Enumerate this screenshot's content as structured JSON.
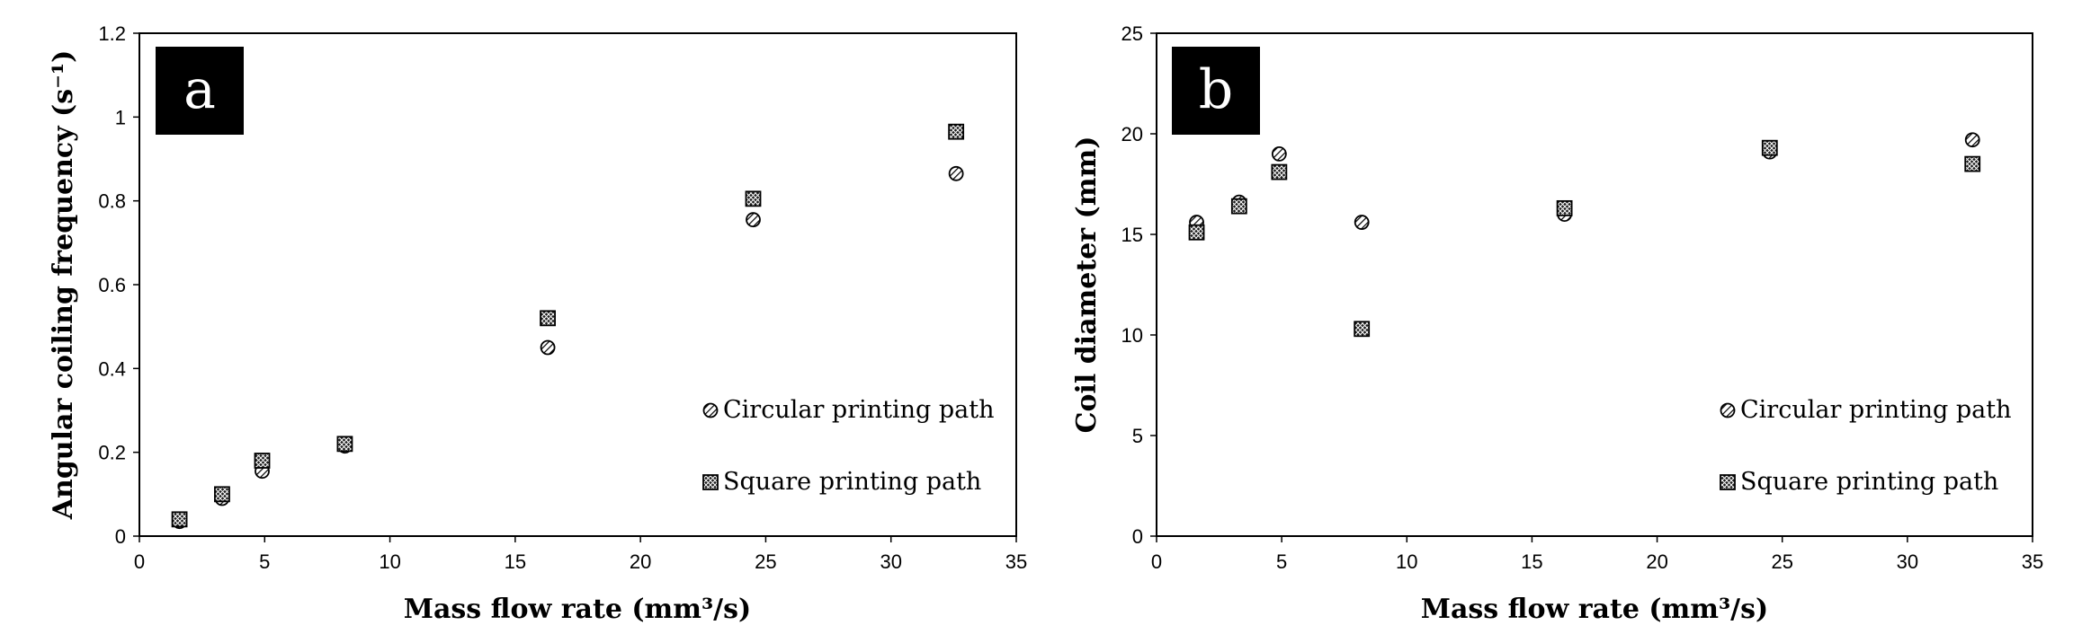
{
  "chart_data": [
    {
      "type": "scatter",
      "panel_label": "a",
      "xlabel": "Mass flow rate (mm³/s)",
      "ylabel": "Angular coiling frequency (s⁻¹)",
      "xlim": [
        0,
        35
      ],
      "ylim": [
        0,
        1.2
      ],
      "x_ticks": [
        "0",
        "5",
        "10",
        "15",
        "20",
        "25",
        "30",
        "35"
      ],
      "y_ticks": [
        "0",
        "0.2",
        "0.4",
        "0.6",
        "0.8",
        "1",
        "1.2"
      ],
      "legend_position": "lower-right",
      "series": [
        {
          "name": "Circular printing path",
          "marker": "circle",
          "points": [
            [
              1.6,
              0.035
            ],
            [
              3.3,
              0.09
            ],
            [
              4.9,
              0.155
            ],
            [
              8.2,
              0.215
            ],
            [
              16.3,
              0.45
            ],
            [
              24.5,
              0.755
            ],
            [
              32.6,
              0.865
            ]
          ]
        },
        {
          "name": "Square printing path",
          "marker": "square",
          "points": [
            [
              1.6,
              0.04
            ],
            [
              3.3,
              0.1
            ],
            [
              4.9,
              0.18
            ],
            [
              8.2,
              0.22
            ],
            [
              16.3,
              0.52
            ],
            [
              24.5,
              0.805
            ],
            [
              32.6,
              0.965
            ]
          ]
        }
      ]
    },
    {
      "type": "scatter",
      "panel_label": "b",
      "xlabel": "Mass flow rate (mm³/s)",
      "ylabel": "Coil diameter (mm)",
      "xlim": [
        0,
        35
      ],
      "ylim": [
        0,
        25
      ],
      "x_ticks": [
        "0",
        "5",
        "10",
        "15",
        "20",
        "25",
        "30",
        "35"
      ],
      "y_ticks": [
        "0",
        "5",
        "10",
        "15",
        "20",
        "25"
      ],
      "legend_position": "lower-right",
      "series": [
        {
          "name": "Circular printing path",
          "marker": "circle",
          "points": [
            [
              1.6,
              15.6
            ],
            [
              3.3,
              16.6
            ],
            [
              4.9,
              19.0
            ],
            [
              8.2,
              15.6
            ],
            [
              16.3,
              16.0
            ],
            [
              24.5,
              19.1
            ],
            [
              32.6,
              19.7
            ]
          ]
        },
        {
          "name": "Square printing path",
          "marker": "square",
          "points": [
            [
              1.6,
              15.1
            ],
            [
              3.3,
              16.4
            ],
            [
              4.9,
              18.1
            ],
            [
              8.2,
              10.3
            ],
            [
              16.3,
              16.3
            ],
            [
              24.5,
              19.3
            ],
            [
              32.6,
              18.5
            ]
          ]
        }
      ]
    }
  ]
}
